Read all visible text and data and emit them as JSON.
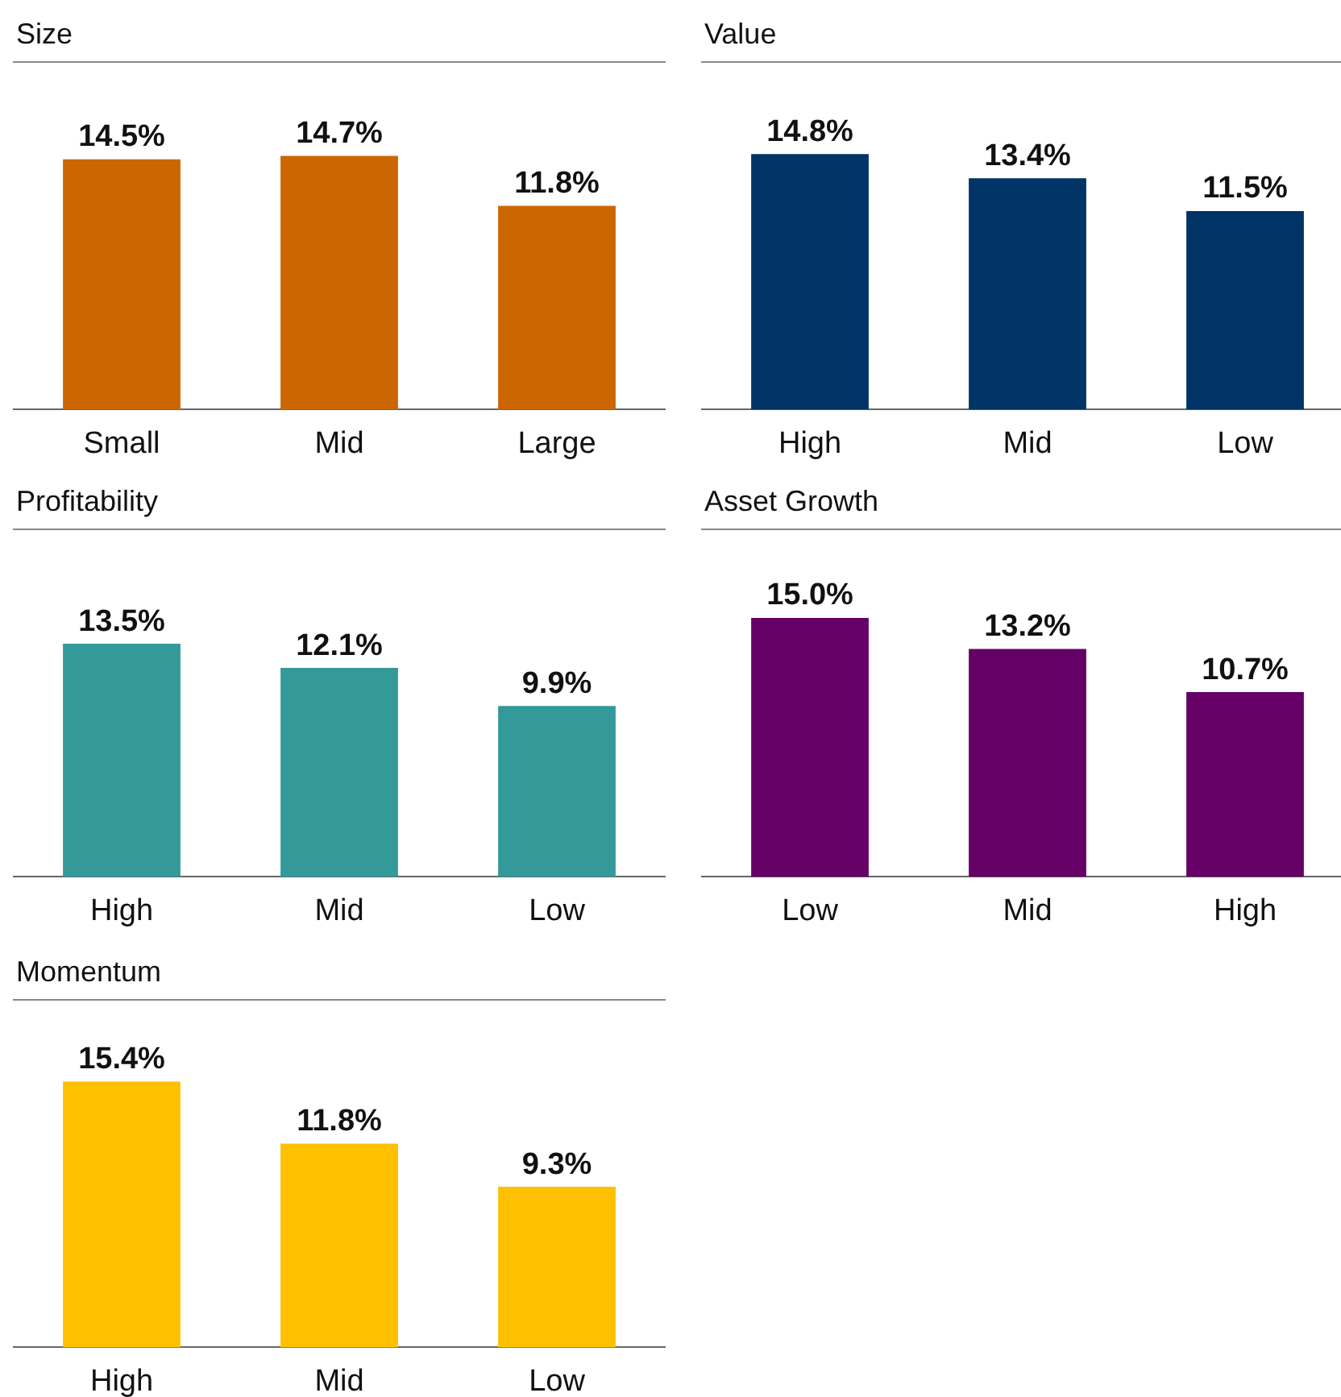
{
  "chart_data": [
    {
      "type": "bar",
      "title": "Size",
      "categories": [
        "Small",
        "Mid",
        "Large"
      ],
      "values": [
        14.5,
        14.7,
        11.8
      ],
      "value_labels": [
        "14.5%",
        "14.7%",
        "11.8%"
      ],
      "color": "#cc6600",
      "tick_labels": "x",
      "grid": false,
      "legend": false
    },
    {
      "type": "bar",
      "title": "Value",
      "categories": [
        "High",
        "Mid",
        "Low"
      ],
      "values": [
        14.8,
        13.4,
        11.5
      ],
      "value_labels": [
        "14.8%",
        "13.4%",
        "11.5%"
      ],
      "color": "#003366",
      "tick_labels": "x",
      "grid": false,
      "legend": false
    },
    {
      "type": "bar",
      "title": "Profitability",
      "categories": [
        "High",
        "Mid",
        "Low"
      ],
      "values": [
        13.5,
        12.1,
        9.9
      ],
      "value_labels": [
        "13.5%",
        "12.1%",
        "9.9%"
      ],
      "color": "#339999",
      "tick_labels": "x",
      "grid": false,
      "legend": false
    },
    {
      "type": "bar",
      "title": "Asset Growth",
      "categories": [
        "Low",
        "Mid",
        "High"
      ],
      "values": [
        15.0,
        13.2,
        10.7
      ],
      "value_labels": [
        "15.0%",
        "13.2%",
        "10.7%"
      ],
      "color": "#660066",
      "tick_labels": "x",
      "grid": false,
      "legend": false
    },
    {
      "type": "bar",
      "title": "Momentum",
      "categories": [
        "High",
        "Mid",
        "Low"
      ],
      "values": [
        15.4,
        11.8,
        9.3
      ],
      "value_labels": [
        "15.4%",
        "11.8%",
        "9.3%"
      ],
      "color": "#ffc000",
      "tick_labels": "x",
      "grid": false,
      "legend": false
    }
  ]
}
